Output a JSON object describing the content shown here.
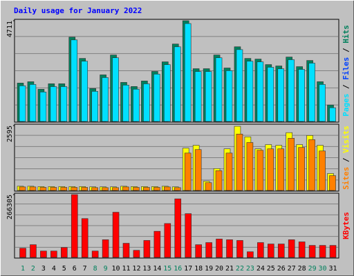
{
  "title": "Daily usage for January 2022",
  "chart_data": [
    {
      "type": "bar",
      "ylim": [
        0,
        4711
      ],
      "yticks": [
        4711
      ],
      "series": [
        {
          "color": "#00805c",
          "values": [
            1814,
            1878,
            1528,
            1783,
            1783,
            3947,
            2960,
            1560,
            2196,
            3119,
            1846,
            1655,
            1910,
            2355,
            2801,
            3629,
            4711,
            2483,
            2483,
            3119,
            2515,
            3501,
            2960,
            2929,
            2674,
            2610,
            3024,
            2578,
            2865,
            1878,
            796
          ]
        },
        {
          "color": "#00e0ff",
          "values": [
            1690,
            1750,
            1400,
            1650,
            1650,
            3820,
            2830,
            1430,
            2070,
            2990,
            1720,
            1530,
            1780,
            2230,
            2670,
            3500,
            4580,
            2350,
            2350,
            2990,
            2390,
            3370,
            2830,
            2800,
            2550,
            2480,
            2900,
            2450,
            2740,
            1750,
            670
          ]
        }
      ],
      "legend": [
        {
          "text": "Pages",
          "color": "#00e0ff"
        },
        {
          "text": "/",
          "color": "#000000"
        },
        {
          "text": "Files",
          "color": "#0040ff"
        },
        {
          "text": "/",
          "color": "#000000"
        },
        {
          "text": "Hits",
          "color": "#00805c"
        }
      ]
    },
    {
      "type": "bar",
      "ylim": [
        0,
        2595
      ],
      "yticks": [
        2595
      ],
      "series": [
        {
          "color": "#ffff00",
          "values": [
            195,
            195,
            180,
            180,
            180,
            180,
            180,
            170,
            170,
            170,
            195,
            180,
            180,
            180,
            195,
            170,
            1702,
            1814,
            391,
            893,
            1674,
            2567,
            2149,
            1674,
            1842,
            1814,
            2316,
            1842,
            2204,
            1814,
            698
          ]
        },
        {
          "color": "#ff8000",
          "values": [
            167,
            167,
            150,
            150,
            150,
            150,
            150,
            140,
            140,
            140,
            167,
            150,
            150,
            150,
            167,
            140,
            1507,
            1646,
            335,
            809,
            1507,
            2260,
            1925,
            1618,
            1674,
            1674,
            2093,
            1730,
            2037,
            1590,
            614
          ]
        }
      ],
      "legend": [
        {
          "text": "Sites",
          "color": "#ff8000"
        },
        {
          "text": "/",
          "color": "#000000"
        },
        {
          "text": "Visits",
          "color": "#ffff00"
        }
      ]
    },
    {
      "type": "bar",
      "ylim": [
        0,
        266305
      ],
      "yticks": [
        266305
      ],
      "series": [
        {
          "color": "#ff0000",
          "values": [
            41425,
            56219,
            29589,
            29589,
            44384,
            266305,
            165700,
            29589,
            76932,
            192331,
            62137,
            32548,
            73973,
            112440,
            144987,
            248551,
            186412,
            56219,
            65096,
            79891,
            76932,
            73973,
            26630,
            65096,
            59179,
            59179,
            76932,
            68055,
            53260,
            53260,
            53260
          ]
        }
      ],
      "categories": [
        "1",
        "2",
        "3",
        "4",
        "5",
        "6",
        "7",
        "8",
        "9",
        "10",
        "11",
        "12",
        "13",
        "14",
        "15",
        "16",
        "17",
        "18",
        "19",
        "20",
        "21",
        "22",
        "23",
        "24",
        "25",
        "26",
        "27",
        "28",
        "29",
        "30",
        "31"
      ],
      "weekend": [
        0,
        1,
        7,
        8,
        14,
        15,
        21,
        22,
        28,
        29
      ],
      "weekend_color": "#00805c",
      "legend": [
        {
          "text": "KBytes",
          "color": "#ff0000"
        }
      ]
    }
  ]
}
